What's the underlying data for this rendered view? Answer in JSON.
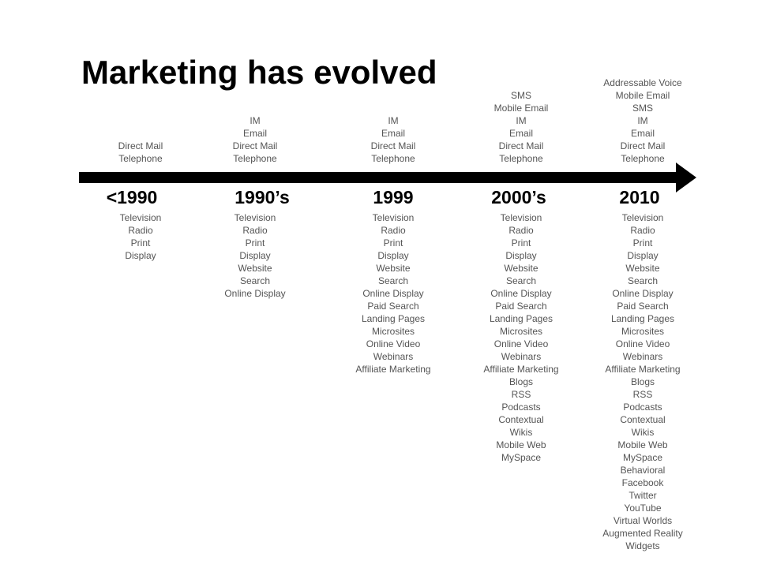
{
  "title": "Marketing has evolved",
  "eras": [
    {
      "label": "<1990",
      "above": [
        "Direct Mail",
        "Telephone"
      ],
      "below": [
        "Television",
        "Radio",
        "Print",
        "Display"
      ]
    },
    {
      "label": "1990’s",
      "above": [
        "IM",
        "Email",
        "Direct Mail",
        "Telephone"
      ],
      "below": [
        "Television",
        "Radio",
        "Print",
        "Display",
        "Website",
        "Search",
        "Online Display"
      ]
    },
    {
      "label": "1999",
      "above": [
        "IM",
        "Email",
        "Direct Mail",
        "Telephone"
      ],
      "below": [
        "Television",
        "Radio",
        "Print",
        "Display",
        "Website",
        "Search",
        "Online Display",
        "Paid Search",
        "Landing Pages",
        "Microsites",
        "Online Video",
        "Webinars",
        "Affiliate Marketing"
      ]
    },
    {
      "label": "2000’s",
      "above": [
        "SMS",
        "Mobile Email",
        "IM",
        "Email",
        "Direct Mail",
        "Telephone"
      ],
      "below": [
        "Television",
        "Radio",
        "Print",
        "Display",
        "Website",
        "Search",
        "Online Display",
        "Paid Search",
        "Landing Pages",
        "Microsites",
        "Online Video",
        "Webinars",
        "Affiliate Marketing",
        "Blogs",
        "RSS",
        "Podcasts",
        "Contextual",
        "Wikis",
        "Mobile Web",
        "MySpace"
      ]
    },
    {
      "label": "2010",
      "above": [
        "Addressable Voice",
        "Mobile Email",
        "SMS",
        "IM",
        "Email",
        "Direct Mail",
        "Telephone"
      ],
      "below": [
        "Television",
        "Radio",
        "Print",
        "Display",
        "Website",
        "Search",
        "Online Display",
        "Paid Search",
        "Landing Pages",
        "Microsites",
        "Online Video",
        "Webinars",
        "Affiliate Marketing",
        "Blogs",
        "RSS",
        "Podcasts",
        "Contextual",
        "Wikis",
        "Mobile Web",
        "MySpace",
        "Behavioral",
        "Facebook",
        "Twitter",
        "YouTube",
        "Virtual Worlds",
        "Augmented Reality",
        "Widgets"
      ]
    }
  ]
}
